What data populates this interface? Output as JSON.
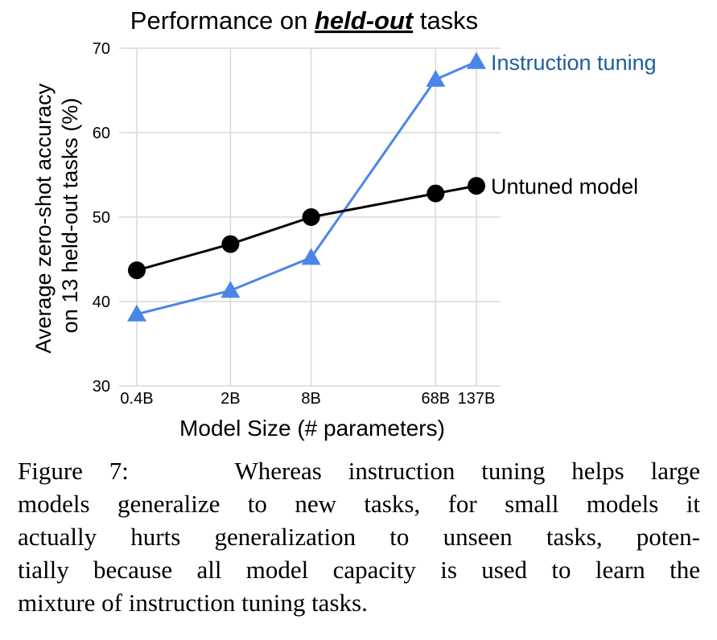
{
  "chart_data": {
    "type": "line",
    "title_parts": {
      "before": "Performance on ",
      "emphasis": "held-out",
      "after": " tasks"
    },
    "xlabel": "Model Size (# parameters)",
    "ylabel_lines": [
      "Average zero-shot accuracy",
      "on 13 held-out tasks (%)"
    ],
    "x_log_params": [
      0.4,
      2,
      8,
      68,
      137
    ],
    "categories": [
      "0.4B",
      "2B",
      "8B",
      "68B",
      "137B"
    ],
    "ylim": [
      30,
      70
    ],
    "yticks": [
      30,
      40,
      50,
      60,
      70
    ],
    "grid": true,
    "series": [
      {
        "name": "Instruction tuning",
        "marker": "triangle",
        "color": "#4a86e8",
        "label_color": "#1f5f9a",
        "values": [
          38.5,
          41.3,
          45.2,
          66.3,
          68.4
        ]
      },
      {
        "name": "Untuned model",
        "marker": "circle",
        "color": "#000000",
        "label_color": "#000000",
        "values": [
          43.7,
          46.8,
          50.0,
          52.8,
          53.7
        ]
      }
    ]
  },
  "caption": {
    "label": "Figure 7:",
    "lines": [
      "Whereas instruction tuning helps large",
      "models generalize to new tasks, for small models it",
      "actually hurts generalization to unseen tasks, poten-",
      "tially because all model capacity is used to learn the",
      "mixture of instruction tuning tasks."
    ]
  }
}
